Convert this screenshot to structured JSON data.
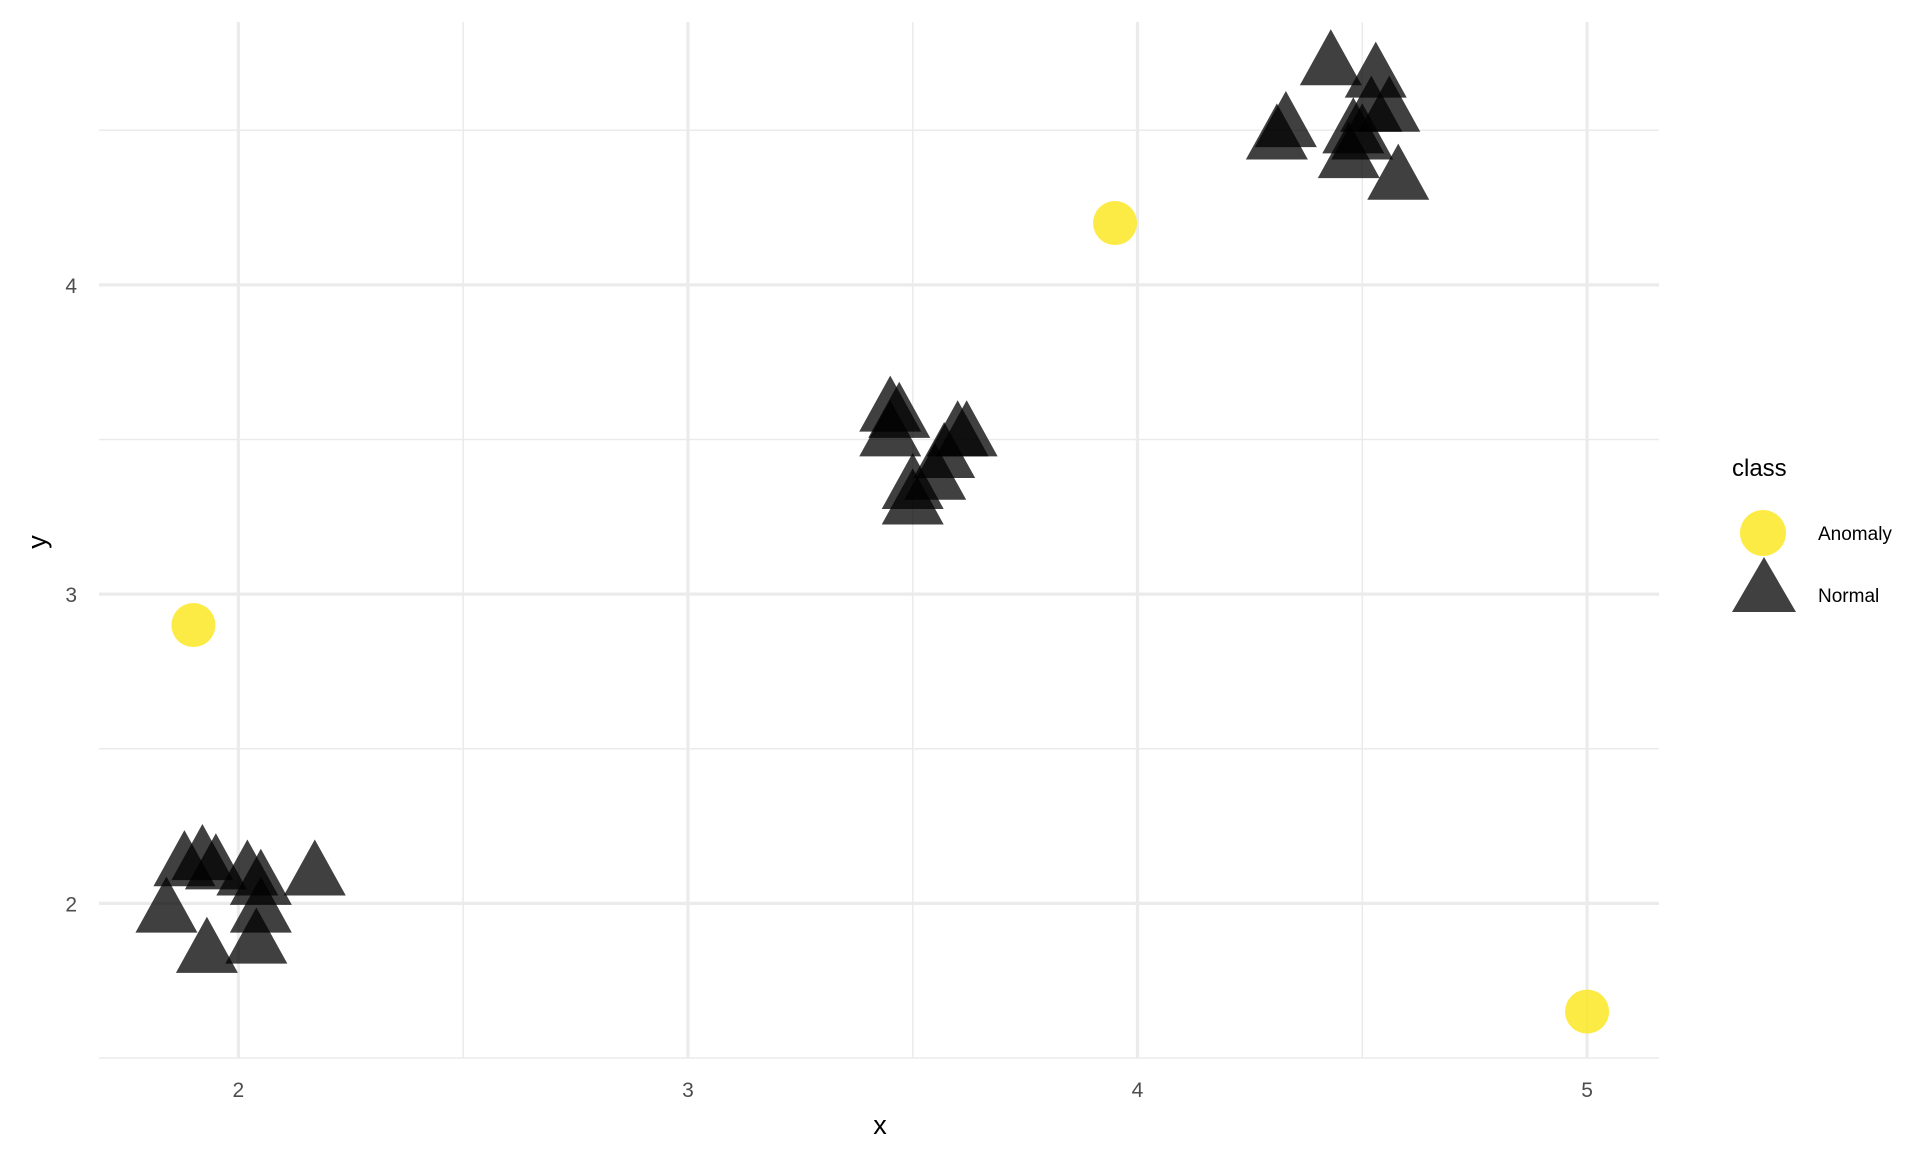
{
  "chart_data": {
    "type": "scatter",
    "xlabel": "x",
    "ylabel": "y",
    "xlim": [
      1.69,
      5.16
    ],
    "ylim": [
      1.5,
      4.85
    ],
    "x_ticks": [
      2,
      3,
      4,
      5
    ],
    "y_ticks": [
      2,
      3,
      4
    ],
    "grid": true,
    "legend": {
      "title": "class",
      "position": "right",
      "entries": [
        {
          "label": "Anomaly",
          "shape": "circle",
          "color": "#FDE725"
        },
        {
          "label": "Normal",
          "shape": "triangle",
          "color": "#000000"
        }
      ]
    },
    "series": [
      {
        "name": "Anomaly",
        "shape": "circle",
        "color": "#FDE725",
        "points": [
          [
            1.9,
            2.9
          ],
          [
            3.95,
            4.2
          ],
          [
            5.0,
            1.65
          ]
        ]
      },
      {
        "name": "Normal",
        "shape": "triangle",
        "color": "#000000",
        "points": [
          [
            1.88,
            2.13
          ],
          [
            1.92,
            2.15
          ],
          [
            1.95,
            2.12
          ],
          [
            2.02,
            2.1
          ],
          [
            2.05,
            2.07
          ],
          [
            2.17,
            2.1
          ],
          [
            1.84,
            1.98
          ],
          [
            1.93,
            1.85
          ],
          [
            2.04,
            1.88
          ],
          [
            2.05,
            1.98
          ],
          [
            3.45,
            3.52
          ],
          [
            3.45,
            3.6
          ],
          [
            3.47,
            3.58
          ],
          [
            3.5,
            3.35
          ],
          [
            3.5,
            3.3
          ],
          [
            3.55,
            3.38
          ],
          [
            3.57,
            3.45
          ],
          [
            3.6,
            3.52
          ],
          [
            3.62,
            3.52
          ],
          [
            4.31,
            4.48
          ],
          [
            4.33,
            4.52
          ],
          [
            4.43,
            4.72
          ],
          [
            4.47,
            4.42
          ],
          [
            4.48,
            4.5
          ],
          [
            4.5,
            4.48
          ],
          [
            4.52,
            4.57
          ],
          [
            4.53,
            4.68
          ],
          [
            4.56,
            4.57
          ],
          [
            4.58,
            4.35
          ]
        ]
      }
    ]
  }
}
